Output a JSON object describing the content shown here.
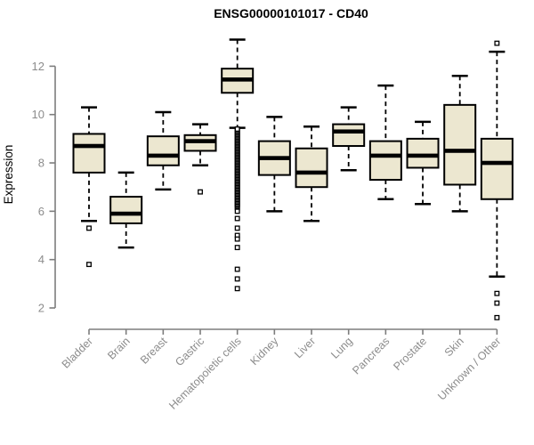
{
  "chart_data": {
    "type": "boxplot",
    "title": "ENSG00000101017 - CD40",
    "ylabel": "Expression",
    "xlabel": "",
    "ylim": [
      1.5,
      13.4
    ],
    "yticks": [
      2,
      4,
      6,
      8,
      10,
      12
    ],
    "grid": false,
    "legend": "none",
    "categories": [
      "Bladder",
      "Brain",
      "Breast",
      "Gastric",
      "Hematopoietic cells",
      "Kidney",
      "Liver",
      "Lung",
      "Pancreas",
      "Prostate",
      "Skin",
      "Unknown / Other"
    ],
    "series": [
      {
        "name": "Bladder",
        "whisker_low": 5.6,
        "q1": 7.6,
        "median": 8.7,
        "q3": 9.2,
        "whisker_high": 10.3,
        "outliers": [
          5.3,
          3.8
        ]
      },
      {
        "name": "Brain",
        "whisker_low": 4.5,
        "q1": 5.5,
        "median": 5.9,
        "q3": 6.6,
        "whisker_high": 7.6,
        "outliers": []
      },
      {
        "name": "Breast",
        "whisker_low": 6.9,
        "q1": 7.9,
        "median": 8.3,
        "q3": 9.1,
        "whisker_high": 10.1,
        "outliers": []
      },
      {
        "name": "Gastric",
        "whisker_low": 7.9,
        "q1": 8.5,
        "median": 8.9,
        "q3": 9.15,
        "whisker_high": 9.6,
        "outliers": [
          6.8
        ]
      },
      {
        "name": "Hematopoietic cells",
        "whisker_low": 9.45,
        "q1": 10.9,
        "median": 11.45,
        "q3": 11.9,
        "whisker_high": 13.1,
        "outliers": [
          6.0,
          5.7,
          5.3,
          5.0,
          4.85,
          4.5,
          3.6,
          3.2,
          2.8
        ],
        "outlier_strip": {
          "min": 6.15,
          "max": 9.4,
          "count": 60
        }
      },
      {
        "name": "Kidney",
        "whisker_low": 6.0,
        "q1": 7.5,
        "median": 8.2,
        "q3": 8.9,
        "whisker_high": 9.9,
        "outliers": []
      },
      {
        "name": "Liver",
        "whisker_low": 5.6,
        "q1": 7.0,
        "median": 7.6,
        "q3": 8.6,
        "whisker_high": 9.5,
        "outliers": []
      },
      {
        "name": "Lung",
        "whisker_low": 7.7,
        "q1": 8.7,
        "median": 9.3,
        "q3": 9.6,
        "whisker_high": 10.3,
        "outliers": []
      },
      {
        "name": "Pancreas",
        "whisker_low": 6.5,
        "q1": 7.3,
        "median": 8.3,
        "q3": 8.9,
        "whisker_high": 11.2,
        "outliers": []
      },
      {
        "name": "Prostate",
        "whisker_low": 6.3,
        "q1": 7.8,
        "median": 8.3,
        "q3": 9.0,
        "whisker_high": 9.7,
        "outliers": []
      },
      {
        "name": "Skin",
        "whisker_low": 6.0,
        "q1": 7.1,
        "median": 8.5,
        "q3": 10.4,
        "whisker_high": 11.6,
        "outliers": []
      },
      {
        "name": "Unknown / Other",
        "whisker_low": 3.3,
        "q1": 6.5,
        "median": 8.0,
        "q3": 9.0,
        "whisker_high": 12.6,
        "outliers": [
          12.95,
          2.6,
          2.2,
          1.6
        ]
      }
    ],
    "colors": {
      "box_fill": "#ece7d0",
      "box_stroke": "#000000",
      "median": "#000000",
      "whisker": "#000000",
      "axis": "#7d7d7d",
      "tick_label": "#8c8c8c",
      "title": "#000000",
      "background": "#ffffff"
    }
  }
}
